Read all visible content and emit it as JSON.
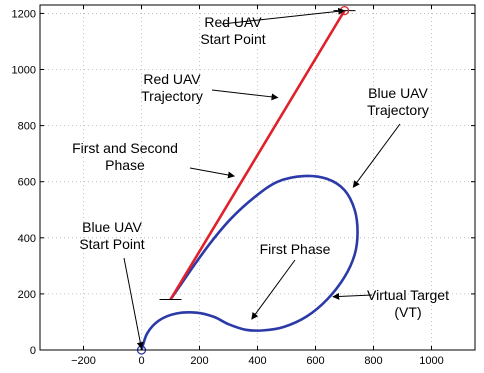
{
  "chart_data": {
    "type": "line",
    "title": "",
    "xlabel": "",
    "ylabel": "",
    "xlim": [
      -350,
      1150
    ],
    "ylim": [
      0,
      1230
    ],
    "grid": true,
    "x_ticks": [
      -200,
      0,
      200,
      400,
      600,
      800,
      1000
    ],
    "y_ticks": [
      0,
      200,
      400,
      600,
      800,
      1000,
      1200
    ],
    "x_tick_labels": [
      "−200",
      "0",
      "200",
      "400",
      "600",
      "800",
      "1000"
    ],
    "y_tick_labels": [
      "0",
      "200",
      "400",
      "600",
      "800",
      "1000",
      "1200"
    ],
    "series": [
      {
        "color": "#e0202a",
        "points": [
          [
            100,
            180
          ],
          [
            700,
            1210
          ]
        ]
      },
      {
        "color": "#2b3aa8",
        "points": [
          [
            0,
            0
          ],
          [
            20,
            60
          ],
          [
            60,
            105
          ],
          [
            120,
            130
          ],
          [
            190,
            133
          ],
          [
            250,
            118
          ],
          [
            300,
            92
          ],
          [
            360,
            72
          ],
          [
            420,
            70
          ],
          [
            490,
            82
          ],
          [
            570,
            120
          ],
          [
            640,
            180
          ],
          [
            700,
            260
          ],
          [
            735,
            340
          ],
          [
            745,
            420
          ],
          [
            735,
            500
          ],
          [
            700,
            570
          ],
          [
            640,
            610
          ],
          [
            560,
            620
          ],
          [
            470,
            600
          ],
          [
            390,
            545
          ],
          [
            310,
            470
          ],
          [
            240,
            385
          ],
          [
            180,
            300
          ],
          [
            130,
            225
          ],
          [
            100,
            180
          ]
        ]
      }
    ],
    "markers": [
      {
        "name": "red-start",
        "x": 700,
        "y": 1210,
        "color": "#e0202a"
      },
      {
        "name": "blue-start",
        "x": 0,
        "y": 0,
        "color": "#2b3aa8"
      }
    ],
    "end_ticks": [
      {
        "x": 100,
        "y": 180
      },
      {
        "x": 700,
        "y": 1210
      },
      {
        "x": 0,
        "y": 0
      }
    ],
    "annotations": [
      {
        "lines": [
          "Red UAV",
          "Start Point"
        ],
        "arrow_to": [
          700,
          1210
        ]
      },
      {
        "lines": [
          "Red UAV",
          "Trajectory"
        ],
        "arrow_to": [
          470,
          900
        ]
      },
      {
        "lines": [
          "First and Second",
          "Phase"
        ],
        "arrow_to": [
          320,
          620
        ]
      },
      {
        "lines": [
          "Blue UAV",
          "Trajectory"
        ],
        "arrow_to": [
          730,
          580
        ]
      },
      {
        "lines": [
          "First Phase"
        ],
        "arrow_to": [
          380,
          110
        ]
      },
      {
        "lines": [
          "Blue UAV",
          "Start Point"
        ],
        "arrow_to": [
          0,
          5
        ]
      },
      {
        "lines": [
          "Virtual Target",
          "(VT)"
        ],
        "arrow_to": [
          660,
          190
        ]
      }
    ]
  }
}
